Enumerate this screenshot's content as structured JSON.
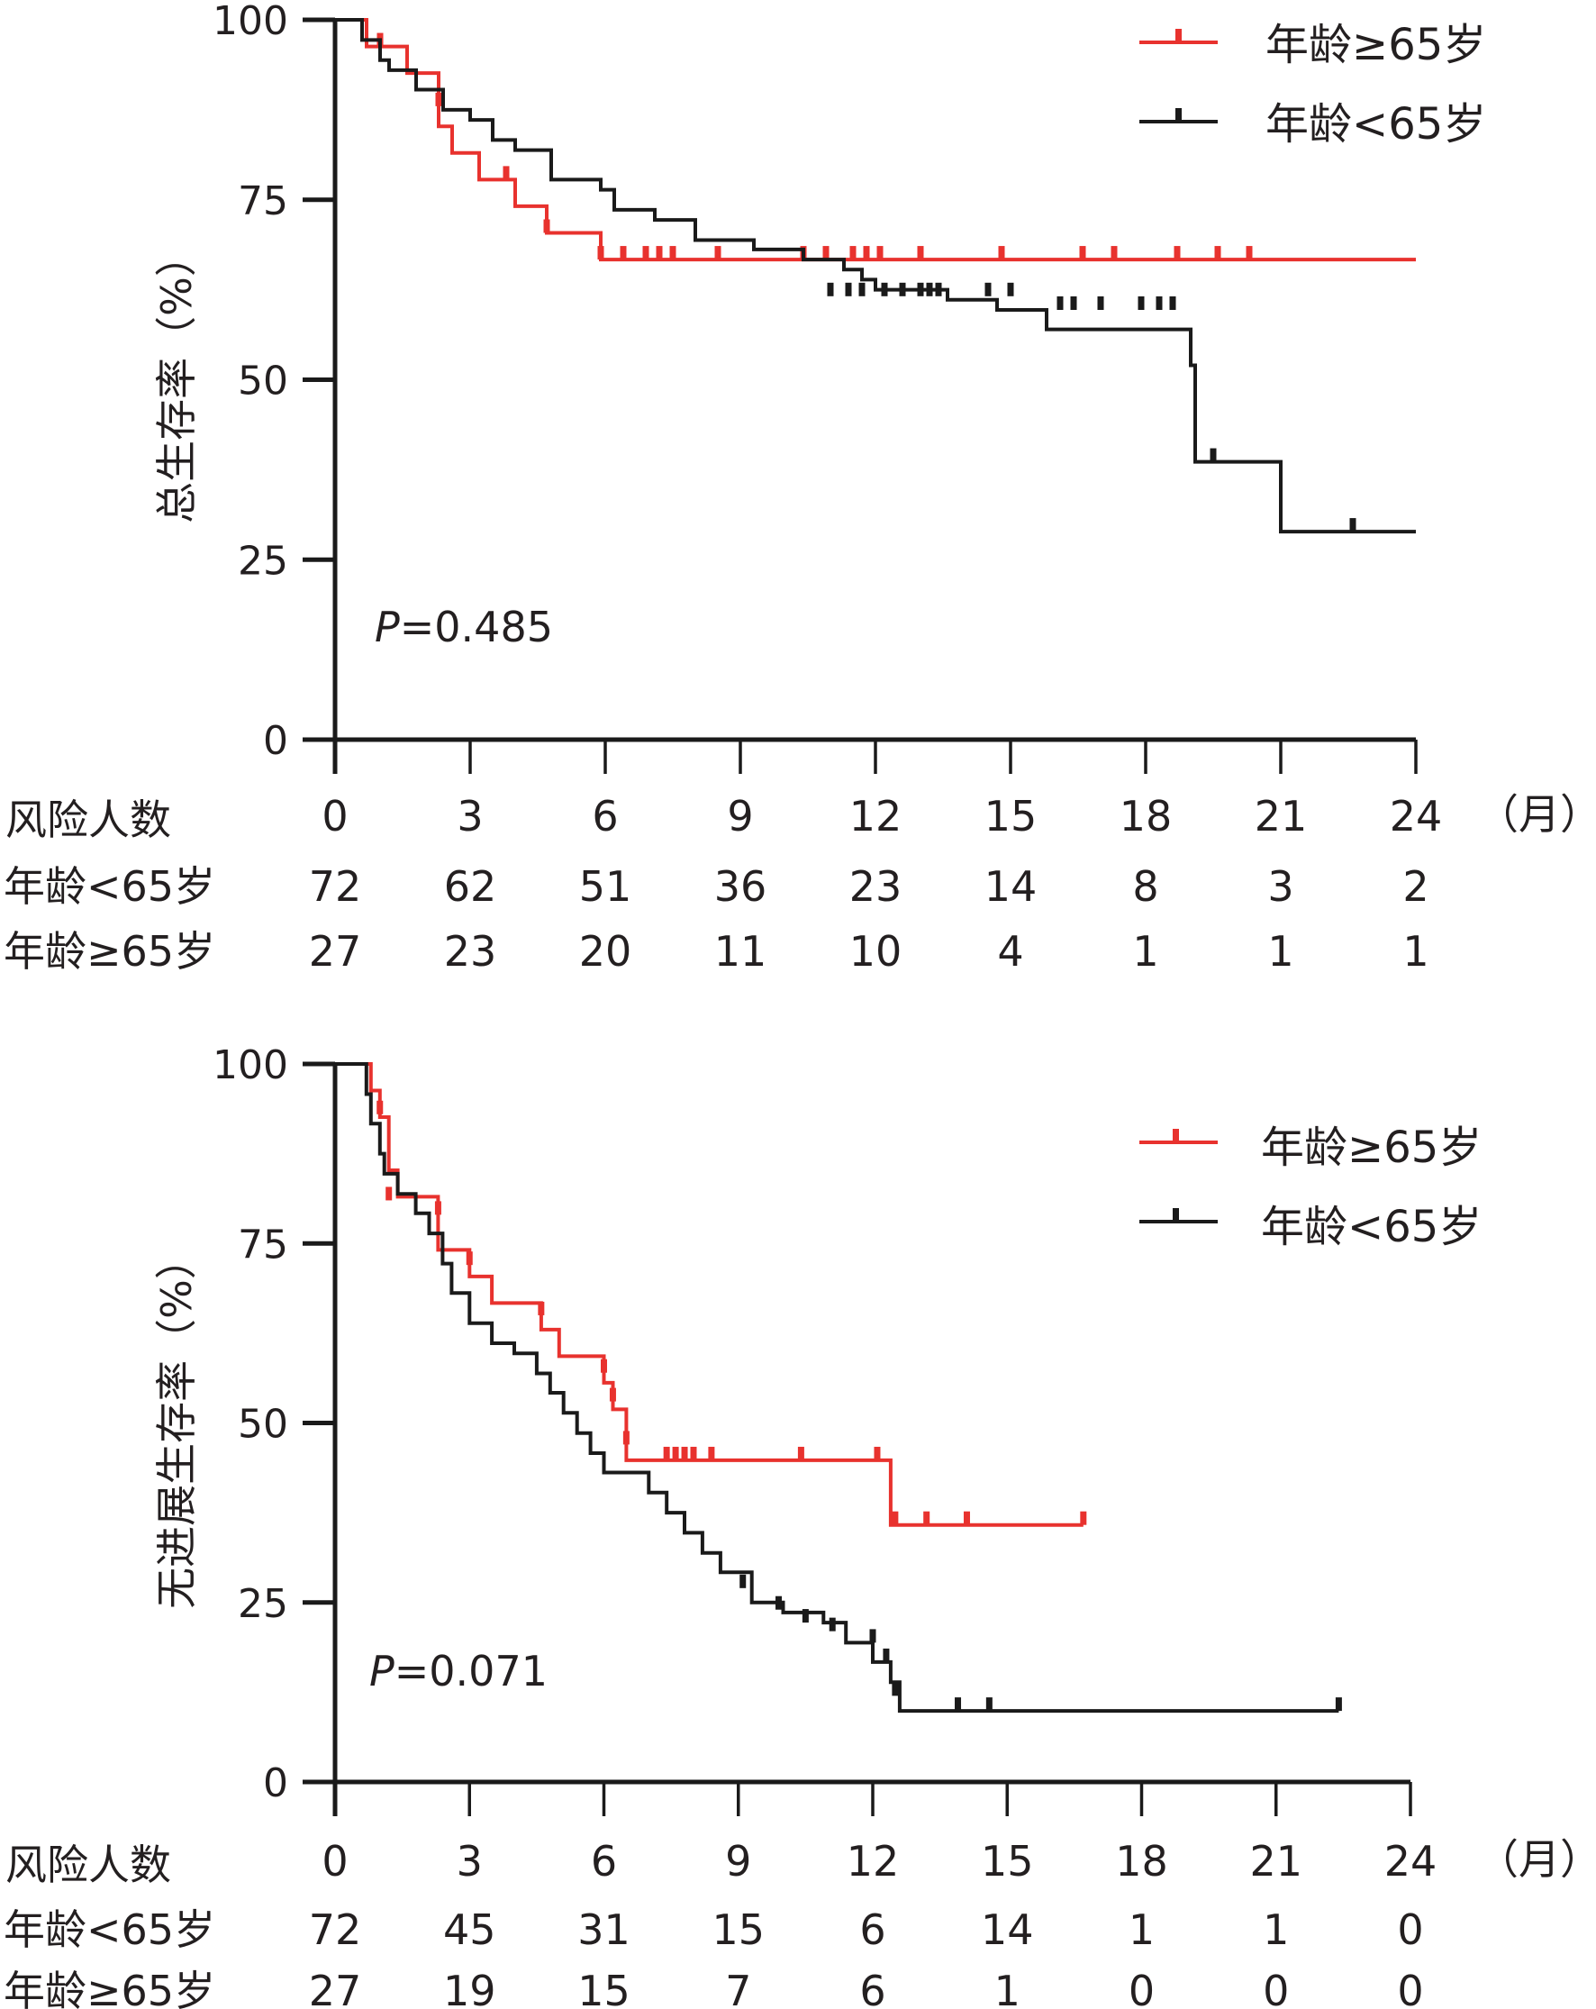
{
  "colors": {
    "older": "#e8322e",
    "younger": "#1a1a1a",
    "axis": "#1a1a1a"
  },
  "chart_data": [
    {
      "type": "line",
      "subtype": "kaplan-meier",
      "ylabel": "总生存率（%）",
      "xunit": "（月）",
      "xlim": [
        0,
        24
      ],
      "ylim": [
        0,
        100
      ],
      "xticks": [
        "0",
        "3",
        "6",
        "9",
        "12",
        "15",
        "18",
        "21",
        "24"
      ],
      "yticks": [
        "0",
        "25",
        "50",
        "75",
        "100"
      ],
      "pvalue_label": "P",
      "pvalue_text": "=0.485",
      "legend": [
        "年龄≥65岁",
        "年龄<65岁"
      ],
      "legend_position": "top-right",
      "risk_table": {
        "header": "风险人数",
        "rows": [
          {
            "label": "年龄<65岁",
            "values": [
              "72",
              "62",
              "51",
              "36",
              "23",
              "14",
              "8",
              "3",
              "2"
            ]
          },
          {
            "label": "年龄≥65岁",
            "values": [
              "27",
              "23",
              "20",
              "11",
              "10",
              "4",
              "1",
              "1",
              "1"
            ]
          }
        ]
      },
      "series": [
        {
          "name": "年龄≥65岁",
          "color_key": "older",
          "steps": [
            [
              0,
              100
            ],
            [
              0.7,
              100
            ],
            [
              0.7,
              96.3
            ],
            [
              1.6,
              96.3
            ],
            [
              1.6,
              92.6
            ],
            [
              2.3,
              92.6
            ],
            [
              2.3,
              85.2
            ],
            [
              2.6,
              85.2
            ],
            [
              2.6,
              81.5
            ],
            [
              3.2,
              81.5
            ],
            [
              3.2,
              77.8
            ],
            [
              4,
              77.8
            ],
            [
              4,
              74.1
            ],
            [
              4.7,
              74.1
            ],
            [
              4.7,
              70.4
            ],
            [
              5.9,
              70.4
            ],
            [
              5.9,
              66.7
            ],
            [
              24,
              66.7
            ]
          ],
          "censors": [
            [
              1.0,
              96.3
            ],
            [
              2.3,
              88
            ],
            [
              3.8,
              77.8
            ],
            [
              4.7,
              70.4
            ],
            [
              5.9,
              66.7
            ],
            [
              6.4,
              66.7
            ],
            [
              6.9,
              66.7
            ],
            [
              7.2,
              66.7
            ],
            [
              7.5,
              66.7
            ],
            [
              8.5,
              66.7
            ],
            [
              10.4,
              66.7
            ],
            [
              10.9,
              66.7
            ],
            [
              11.5,
              66.7
            ],
            [
              11.8,
              66.7
            ],
            [
              12.1,
              66.7
            ],
            [
              13,
              66.7
            ],
            [
              14.8,
              66.7
            ],
            [
              16.6,
              66.7
            ],
            [
              17.3,
              66.7
            ],
            [
              18.7,
              66.7
            ],
            [
              19.6,
              66.7
            ],
            [
              20.3,
              66.7
            ]
          ]
        },
        {
          "name": "年龄<65岁",
          "color_key": "younger",
          "steps": [
            [
              0,
              100
            ],
            [
              0.6,
              100
            ],
            [
              0.6,
              97.2
            ],
            [
              1.0,
              97.2
            ],
            [
              1.0,
              94.4
            ],
            [
              1.2,
              94.4
            ],
            [
              1.2,
              93
            ],
            [
              1.8,
              93
            ],
            [
              1.8,
              90.3
            ],
            [
              2.4,
              90.3
            ],
            [
              2.4,
              87.5
            ],
            [
              3,
              87.5
            ],
            [
              3,
              86.1
            ],
            [
              3.5,
              86.1
            ],
            [
              3.5,
              83.3
            ],
            [
              4,
              83.3
            ],
            [
              4,
              81.9
            ],
            [
              4.8,
              81.9
            ],
            [
              4.8,
              77.8
            ],
            [
              5.9,
              77.8
            ],
            [
              5.9,
              76.4
            ],
            [
              6.2,
              76.4
            ],
            [
              6.2,
              73.6
            ],
            [
              7.1,
              73.6
            ],
            [
              7.1,
              72.2
            ],
            [
              8,
              72.2
            ],
            [
              8,
              69.4
            ],
            [
              9.3,
              69.4
            ],
            [
              9.3,
              68.1
            ],
            [
              10.4,
              68.1
            ],
            [
              10.4,
              66.7
            ],
            [
              11.3,
              66.7
            ],
            [
              11.3,
              65.3
            ],
            [
              11.7,
              65.3
            ],
            [
              11.7,
              63.9
            ],
            [
              12,
              63.9
            ],
            [
              12,
              62.5
            ],
            [
              13.6,
              62.5
            ],
            [
              13.6,
              61.1
            ],
            [
              14.7,
              61.1
            ],
            [
              14.7,
              59.7
            ],
            [
              15.8,
              59.7
            ],
            [
              15.8,
              57
            ],
            [
              19,
              57
            ],
            [
              19,
              52
            ],
            [
              19.1,
              52
            ],
            [
              19.1,
              38.6
            ],
            [
              21,
              38.6
            ],
            [
              21,
              28.9
            ],
            [
              24,
              28.9
            ]
          ],
          "censors": [
            [
              11,
              61.6
            ],
            [
              11.4,
              61.6
            ],
            [
              11.7,
              61.6
            ],
            [
              12.2,
              61.6
            ],
            [
              12.6,
              61.6
            ],
            [
              13,
              61.6
            ],
            [
              13.2,
              61.6
            ],
            [
              13.4,
              61.6
            ],
            [
              14.5,
              61.6
            ],
            [
              15,
              61.6
            ],
            [
              16.1,
              59.7
            ],
            [
              16.4,
              59.7
            ],
            [
              17,
              59.7
            ],
            [
              17.9,
              59.7
            ],
            [
              18.3,
              59.7
            ],
            [
              18.6,
              59.7
            ],
            [
              19.5,
              38.6
            ],
            [
              22.6,
              28.9
            ]
          ]
        }
      ]
    },
    {
      "type": "line",
      "subtype": "kaplan-meier",
      "ylabel": "无进展生存率（%）",
      "xunit": "（月）",
      "xlim": [
        0,
        24
      ],
      "ylim": [
        0,
        100
      ],
      "xticks": [
        "0",
        "3",
        "6",
        "9",
        "12",
        "15",
        "18",
        "21",
        "24"
      ],
      "yticks": [
        "0",
        "25",
        "50",
        "75",
        "100"
      ],
      "pvalue_label": "P",
      "pvalue_text": "=0.071",
      "legend": [
        "年龄≥65岁",
        "年龄<65岁"
      ],
      "legend_position": "top-right",
      "risk_table": {
        "header": "风险人数",
        "rows": [
          {
            "label": "年龄<65岁",
            "values": [
              "72",
              "45",
              "31",
              "15",
              "6",
              "14",
              "1",
              "1",
              "0"
            ]
          },
          {
            "label": "年龄≥65岁",
            "values": [
              "27",
              "19",
              "15",
              "7",
              "6",
              "1",
              "0",
              "0",
              "0"
            ]
          }
        ]
      },
      "series": [
        {
          "name": "年龄≥65岁",
          "color_key": "older",
          "steps": [
            [
              0,
              100
            ],
            [
              0.8,
              100
            ],
            [
              0.8,
              96.3
            ],
            [
              1.0,
              96.3
            ],
            [
              1.0,
              92.6
            ],
            [
              1.2,
              92.6
            ],
            [
              1.2,
              85.2
            ],
            [
              1.4,
              85.2
            ],
            [
              1.4,
              81.5
            ],
            [
              2.3,
              81.5
            ],
            [
              2.3,
              74.1
            ],
            [
              3.0,
              74.1
            ],
            [
              3.0,
              70.4
            ],
            [
              3.5,
              70.4
            ],
            [
              3.5,
              66.7
            ],
            [
              4.6,
              66.7
            ],
            [
              4.6,
              63
            ],
            [
              5.0,
              63
            ],
            [
              5.0,
              59.3
            ],
            [
              6.0,
              59.3
            ],
            [
              6.0,
              55.6
            ],
            [
              6.2,
              55.6
            ],
            [
              6.2,
              51.9
            ],
            [
              6.5,
              51.9
            ],
            [
              6.5,
              44.8
            ],
            [
              12.4,
              44.8
            ],
            [
              12.4,
              35.8
            ],
            [
              16.7,
              35.8
            ]
          ],
          "censors": [
            [
              1.0,
              93
            ],
            [
              1.2,
              81
            ],
            [
              2.3,
              79
            ],
            [
              3.0,
              72
            ],
            [
              4.6,
              65
            ],
            [
              6.0,
              57
            ],
            [
              6.2,
              53
            ],
            [
              6.5,
              47
            ],
            [
              7.4,
              44.8
            ],
            [
              7.6,
              44.8
            ],
            [
              7.8,
              44.8
            ],
            [
              8.0,
              44.8
            ],
            [
              8.4,
              44.8
            ],
            [
              10.4,
              44.8
            ],
            [
              12.1,
              44.8
            ],
            [
              12.5,
              35.8
            ],
            [
              13.2,
              35.8
            ],
            [
              14.1,
              35.8
            ],
            [
              16.7,
              35.8
            ]
          ]
        },
        {
          "name": "年龄<65岁",
          "color_key": "younger",
          "steps": [
            [
              0,
              100
            ],
            [
              0.7,
              100
            ],
            [
              0.7,
              95.8
            ],
            [
              0.8,
              95.8
            ],
            [
              0.8,
              91.7
            ],
            [
              1.0,
              91.7
            ],
            [
              1.0,
              87.5
            ],
            [
              1.1,
              87.5
            ],
            [
              1.1,
              84.7
            ],
            [
              1.4,
              84.7
            ],
            [
              1.4,
              81.9
            ],
            [
              1.8,
              81.9
            ],
            [
              1.8,
              79.2
            ],
            [
              2.1,
              79.2
            ],
            [
              2.1,
              76.4
            ],
            [
              2.4,
              76.4
            ],
            [
              2.4,
              72.2
            ],
            [
              2.6,
              72.2
            ],
            [
              2.6,
              68.1
            ],
            [
              3.0,
              68.1
            ],
            [
              3.0,
              63.9
            ],
            [
              3.5,
              63.9
            ],
            [
              3.5,
              61.1
            ],
            [
              4.0,
              61.1
            ],
            [
              4.0,
              59.7
            ],
            [
              4.5,
              59.7
            ],
            [
              4.5,
              56.9
            ],
            [
              4.8,
              56.9
            ],
            [
              4.8,
              54.2
            ],
            [
              5.1,
              54.2
            ],
            [
              5.1,
              51.4
            ],
            [
              5.4,
              51.4
            ],
            [
              5.4,
              48.6
            ],
            [
              5.7,
              48.6
            ],
            [
              5.7,
              45.8
            ],
            [
              6.0,
              45.8
            ],
            [
              6.0,
              43.1
            ],
            [
              7.0,
              43.1
            ],
            [
              7.0,
              40.3
            ],
            [
              7.4,
              40.3
            ],
            [
              7.4,
              37.5
            ],
            [
              7.8,
              37.5
            ],
            [
              7.8,
              34.7
            ],
            [
              8.2,
              34.7
            ],
            [
              8.2,
              31.9
            ],
            [
              8.6,
              31.9
            ],
            [
              8.6,
              29.2
            ],
            [
              9.3,
              29.2
            ],
            [
              9.3,
              25.0
            ],
            [
              10.0,
              25.0
            ],
            [
              10.0,
              23.6
            ],
            [
              10.9,
              23.6
            ],
            [
              10.9,
              22.2
            ],
            [
              11.4,
              22.2
            ],
            [
              11.4,
              19.4
            ],
            [
              12.0,
              19.4
            ],
            [
              12.0,
              16.7
            ],
            [
              12.4,
              16.7
            ],
            [
              12.4,
              13.9
            ],
            [
              12.6,
              13.9
            ],
            [
              12.6,
              9.9
            ],
            [
              22.4,
              9.9
            ]
          ],
          "censors": [
            [
              9.1,
              27
            ],
            [
              9.9,
              24
            ],
            [
              10.5,
              22.2
            ],
            [
              11.1,
              21
            ],
            [
              12.0,
              19.4
            ],
            [
              12.3,
              16.7
            ],
            [
              12.5,
              12
            ],
            [
              13.9,
              9.9
            ],
            [
              14.6,
              9.9
            ],
            [
              22.4,
              9.9
            ]
          ]
        }
      ]
    }
  ]
}
